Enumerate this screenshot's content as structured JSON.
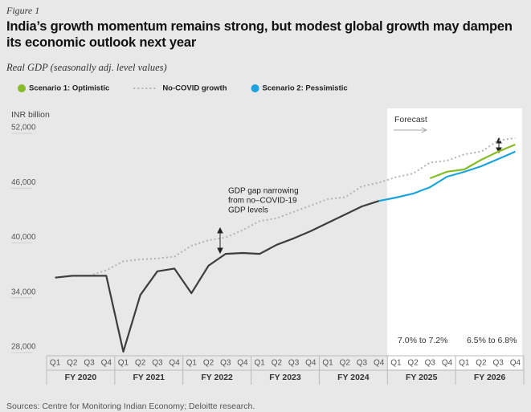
{
  "chart_data": {
    "type": "line",
    "figure_label": "Figure 1",
    "title": "India’s growth momentum remains strong, but modest global growth may dampen its economic outlook next year",
    "subtitle": "Real GDP (seasonally adj. level values)",
    "y_axis_label": "INR billion",
    "categories": [
      "Q1",
      "Q2",
      "Q3",
      "Q4",
      "Q1",
      "Q2",
      "Q3",
      "Q4",
      "Q1",
      "Q2",
      "Q3",
      "Q4",
      "Q1",
      "Q2",
      "Q3",
      "Q4",
      "Q1",
      "Q2",
      "Q3",
      "Q4",
      "Q1",
      "Q2",
      "Q3",
      "Q4",
      "Q1",
      "Q2",
      "Q3",
      "Q4"
    ],
    "groups": [
      "FY 2020",
      "FY 2021",
      "FY 2022",
      "FY 2023",
      "FY 2024",
      "FY 2025",
      "FY 2026"
    ],
    "ylim": [
      28000,
      52000
    ],
    "yticks": [
      {
        "value": 28000,
        "label": "28,000"
      },
      {
        "value": 34000,
        "label": "34,000"
      },
      {
        "value": 40000,
        "label": "40,000"
      },
      {
        "value": 46000,
        "label": "46,000"
      },
      {
        "value": 52000,
        "label": "52,000"
      }
    ],
    "series": [
      {
        "name": "No-COVID growth",
        "color": "#b3b3b3",
        "style": "dotted",
        "legend": true,
        "values": [
          null,
          null,
          36400,
          37000,
          38000,
          38200,
          38300,
          38500,
          39700,
          40300,
          40600,
          41400,
          42400,
          42700,
          43400,
          44100,
          44800,
          45000,
          46200,
          46600,
          47200,
          47600,
          48800,
          49000,
          49700,
          50000,
          51200,
          51500
        ]
      },
      {
        "name": "Actual",
        "color": "#3d3d3d",
        "style": "solid",
        "legend": false,
        "values": [
          36200,
          36400,
          36400,
          36400,
          28100,
          34300,
          36900,
          37200,
          34500,
          37500,
          38800,
          38900,
          38800,
          39800,
          40500,
          41300,
          42200,
          43100,
          44000,
          44600,
          null,
          null,
          null,
          null,
          null,
          null,
          null,
          null
        ]
      },
      {
        "name": "Scenario 2: Pessimistic",
        "color": "#1aa3dc",
        "style": "solid",
        "legend": true,
        "values": [
          null,
          null,
          null,
          null,
          null,
          null,
          null,
          null,
          null,
          null,
          null,
          null,
          null,
          null,
          null,
          null,
          null,
          null,
          null,
          44600,
          44970,
          45400,
          46100,
          47250,
          47780,
          48400,
          49190,
          50000
        ]
      },
      {
        "name": "Scenario 1: Optimistic",
        "color": "#86bc25",
        "style": "solid",
        "legend": true,
        "values": [
          null,
          null,
          null,
          null,
          null,
          null,
          null,
          null,
          null,
          null,
          null,
          null,
          null,
          null,
          null,
          null,
          null,
          null,
          null,
          null,
          null,
          null,
          47080,
          47800,
          48040,
          49100,
          50000,
          50770
        ]
      }
    ],
    "forecast_label": "Forecast",
    "annotations": {
      "gap": [
        "GDP gap narrowing",
        "from no–COVID-19",
        "GDP levels"
      ],
      "fy2025": "7.0% to 7.2%",
      "fy2026": "6.5% to 6.8%"
    },
    "source": "Sources: Centre for Monitoring Indian Economy; Deloitte research."
  }
}
